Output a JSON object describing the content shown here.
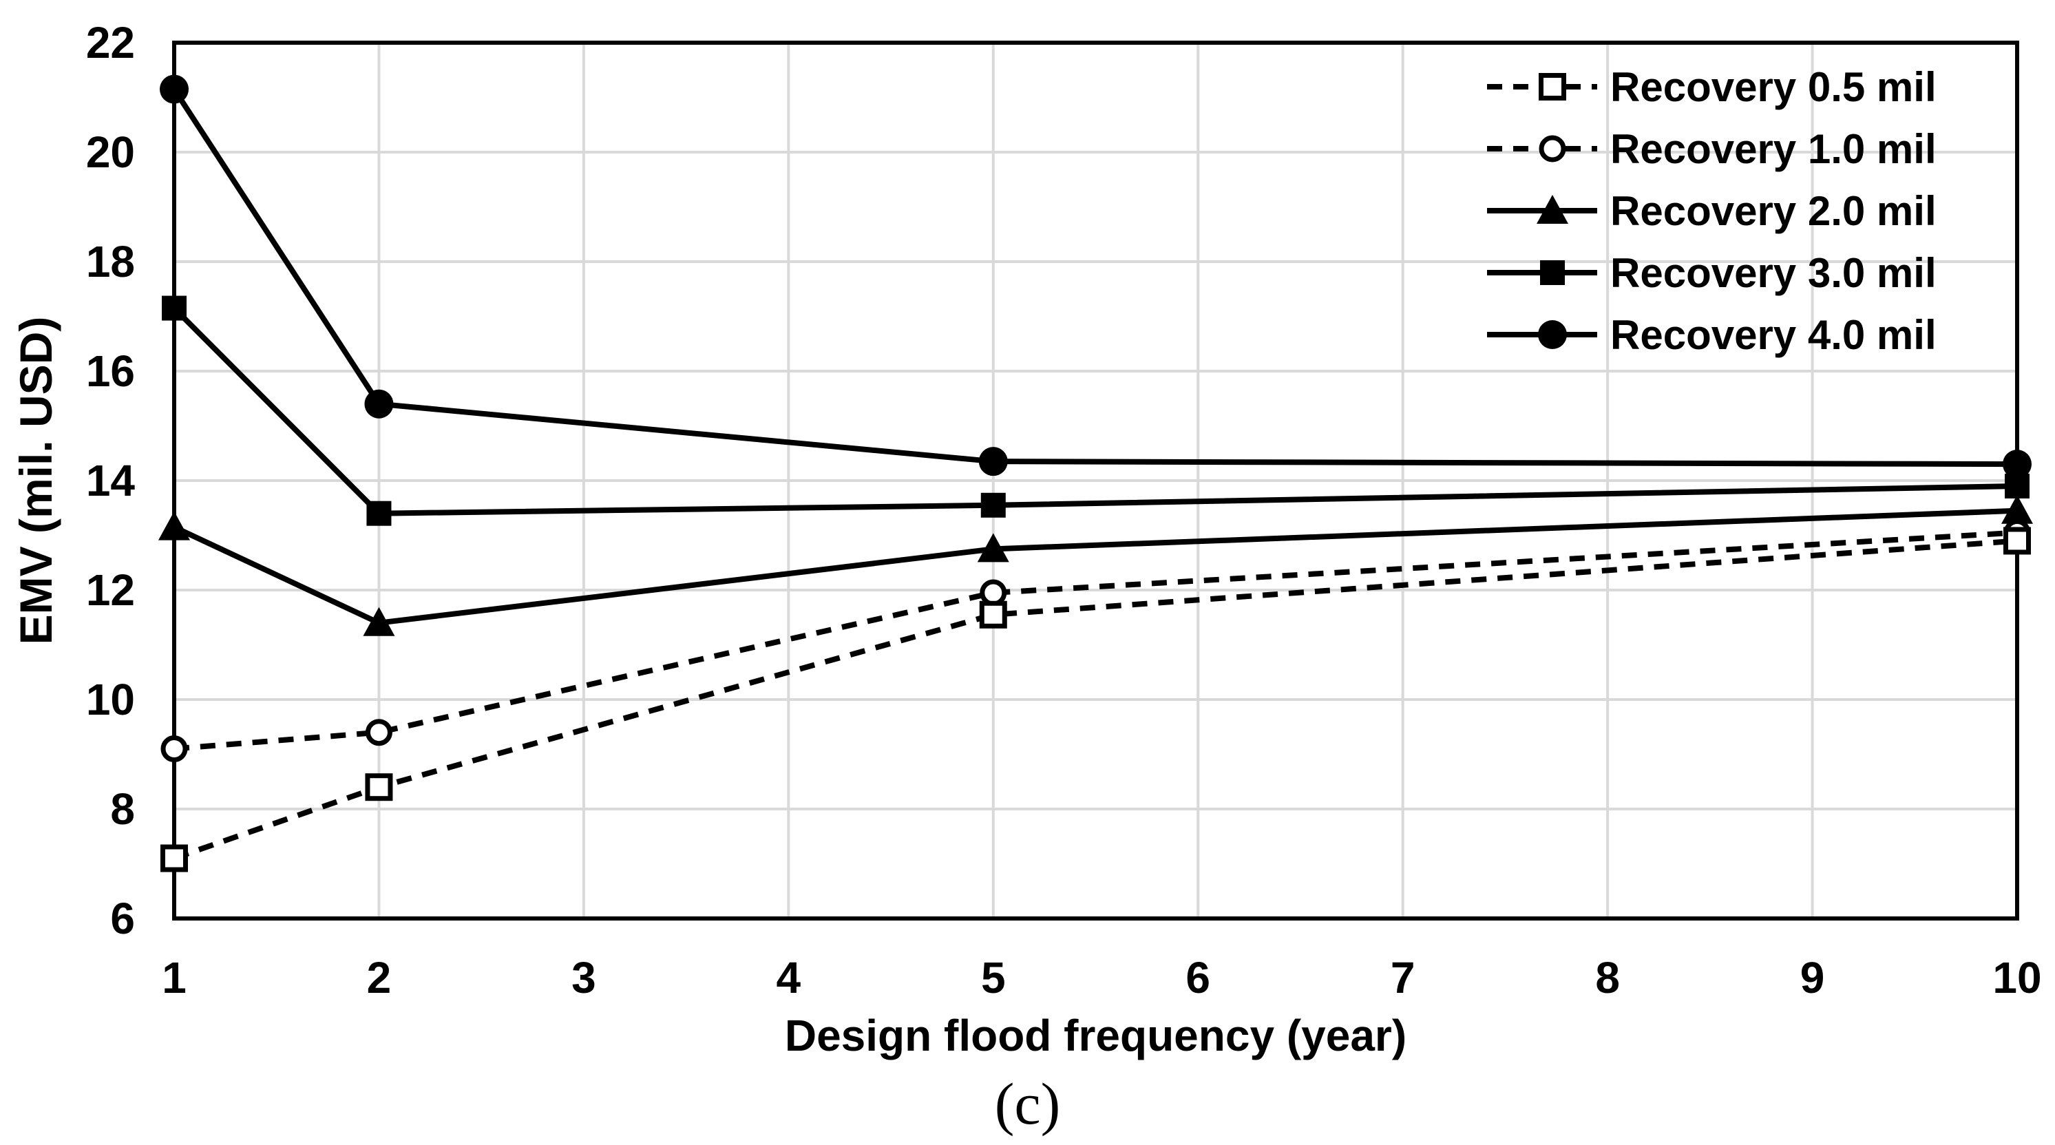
{
  "figure": {
    "caption": "(c)",
    "background": "#ffffff"
  },
  "chart_data": {
    "type": "line",
    "title": "",
    "xlabel": "Design flood frequency (year)",
    "ylabel": "EMV (mil. USD)",
    "x": [
      1,
      2,
      5,
      10
    ],
    "xlim": [
      1,
      10
    ],
    "ylim": [
      6,
      22
    ],
    "xticks": [
      1,
      2,
      3,
      4,
      5,
      6,
      7,
      8,
      9,
      10
    ],
    "yticks": [
      6,
      8,
      10,
      12,
      14,
      16,
      18,
      20,
      22
    ],
    "grid": "both",
    "legend_position": "top-right-inside",
    "series": [
      {
        "name": "Recovery 0.5 mil",
        "values": [
          7.1,
          8.4,
          11.55,
          12.9
        ],
        "line": "dashed",
        "marker": "open-square"
      },
      {
        "name": "Recovery 1.0 mil",
        "values": [
          9.1,
          9.4,
          11.95,
          13.05
        ],
        "line": "dashed",
        "marker": "open-circle"
      },
      {
        "name": "Recovery 2.0 mil",
        "values": [
          13.15,
          11.4,
          12.75,
          13.45
        ],
        "line": "solid",
        "marker": "filled-triangle"
      },
      {
        "name": "Recovery 3.0 mil",
        "values": [
          17.15,
          13.4,
          13.55,
          13.9
        ],
        "line": "solid",
        "marker": "filled-square"
      },
      {
        "name": "Recovery 4.0 mil",
        "values": [
          21.15,
          15.4,
          14.35,
          14.3
        ],
        "line": "solid",
        "marker": "filled-circle"
      }
    ],
    "colors": {
      "series": "#000000",
      "grid": "#d9d9d9",
      "frame": "#000000",
      "background": "#ffffff"
    }
  }
}
